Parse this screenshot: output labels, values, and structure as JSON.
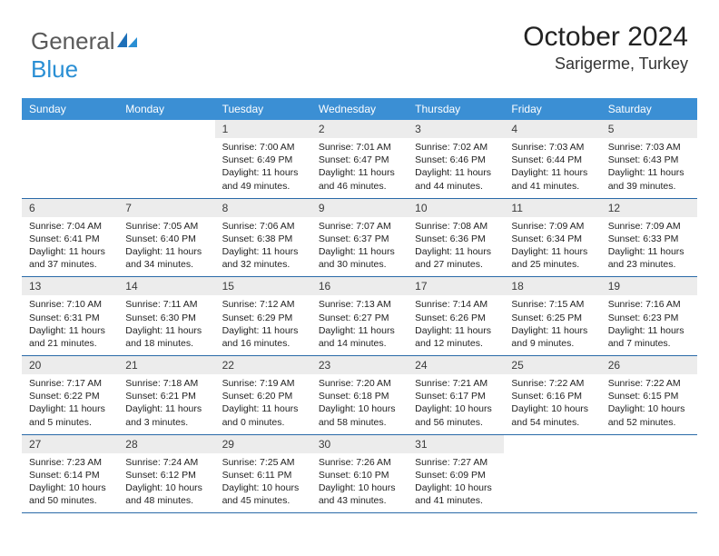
{
  "logo": {
    "part1": "General",
    "part2": "Blue"
  },
  "header": {
    "title": "October 2024",
    "location": "Sarigerme, Turkey"
  },
  "colors": {
    "header_bar": "#3b8fd4",
    "daynum_bg": "#ececec",
    "week_border": "#2a6aa8",
    "logo_gray": "#5a5a5a",
    "logo_blue": "#2a8fd4"
  },
  "dayNames": [
    "Sunday",
    "Monday",
    "Tuesday",
    "Wednesday",
    "Thursday",
    "Friday",
    "Saturday"
  ],
  "weeks": [
    [
      null,
      null,
      {
        "n": "1",
        "sr": "Sunrise: 7:00 AM",
        "ss": "Sunset: 6:49 PM",
        "dl": "Daylight: 11 hours and 49 minutes."
      },
      {
        "n": "2",
        "sr": "Sunrise: 7:01 AM",
        "ss": "Sunset: 6:47 PM",
        "dl": "Daylight: 11 hours and 46 minutes."
      },
      {
        "n": "3",
        "sr": "Sunrise: 7:02 AM",
        "ss": "Sunset: 6:46 PM",
        "dl": "Daylight: 11 hours and 44 minutes."
      },
      {
        "n": "4",
        "sr": "Sunrise: 7:03 AM",
        "ss": "Sunset: 6:44 PM",
        "dl": "Daylight: 11 hours and 41 minutes."
      },
      {
        "n": "5",
        "sr": "Sunrise: 7:03 AM",
        "ss": "Sunset: 6:43 PM",
        "dl": "Daylight: 11 hours and 39 minutes."
      }
    ],
    [
      {
        "n": "6",
        "sr": "Sunrise: 7:04 AM",
        "ss": "Sunset: 6:41 PM",
        "dl": "Daylight: 11 hours and 37 minutes."
      },
      {
        "n": "7",
        "sr": "Sunrise: 7:05 AM",
        "ss": "Sunset: 6:40 PM",
        "dl": "Daylight: 11 hours and 34 minutes."
      },
      {
        "n": "8",
        "sr": "Sunrise: 7:06 AM",
        "ss": "Sunset: 6:38 PM",
        "dl": "Daylight: 11 hours and 32 minutes."
      },
      {
        "n": "9",
        "sr": "Sunrise: 7:07 AM",
        "ss": "Sunset: 6:37 PM",
        "dl": "Daylight: 11 hours and 30 minutes."
      },
      {
        "n": "10",
        "sr": "Sunrise: 7:08 AM",
        "ss": "Sunset: 6:36 PM",
        "dl": "Daylight: 11 hours and 27 minutes."
      },
      {
        "n": "11",
        "sr": "Sunrise: 7:09 AM",
        "ss": "Sunset: 6:34 PM",
        "dl": "Daylight: 11 hours and 25 minutes."
      },
      {
        "n": "12",
        "sr": "Sunrise: 7:09 AM",
        "ss": "Sunset: 6:33 PM",
        "dl": "Daylight: 11 hours and 23 minutes."
      }
    ],
    [
      {
        "n": "13",
        "sr": "Sunrise: 7:10 AM",
        "ss": "Sunset: 6:31 PM",
        "dl": "Daylight: 11 hours and 21 minutes."
      },
      {
        "n": "14",
        "sr": "Sunrise: 7:11 AM",
        "ss": "Sunset: 6:30 PM",
        "dl": "Daylight: 11 hours and 18 minutes."
      },
      {
        "n": "15",
        "sr": "Sunrise: 7:12 AM",
        "ss": "Sunset: 6:29 PM",
        "dl": "Daylight: 11 hours and 16 minutes."
      },
      {
        "n": "16",
        "sr": "Sunrise: 7:13 AM",
        "ss": "Sunset: 6:27 PM",
        "dl": "Daylight: 11 hours and 14 minutes."
      },
      {
        "n": "17",
        "sr": "Sunrise: 7:14 AM",
        "ss": "Sunset: 6:26 PM",
        "dl": "Daylight: 11 hours and 12 minutes."
      },
      {
        "n": "18",
        "sr": "Sunrise: 7:15 AM",
        "ss": "Sunset: 6:25 PM",
        "dl": "Daylight: 11 hours and 9 minutes."
      },
      {
        "n": "19",
        "sr": "Sunrise: 7:16 AM",
        "ss": "Sunset: 6:23 PM",
        "dl": "Daylight: 11 hours and 7 minutes."
      }
    ],
    [
      {
        "n": "20",
        "sr": "Sunrise: 7:17 AM",
        "ss": "Sunset: 6:22 PM",
        "dl": "Daylight: 11 hours and 5 minutes."
      },
      {
        "n": "21",
        "sr": "Sunrise: 7:18 AM",
        "ss": "Sunset: 6:21 PM",
        "dl": "Daylight: 11 hours and 3 minutes."
      },
      {
        "n": "22",
        "sr": "Sunrise: 7:19 AM",
        "ss": "Sunset: 6:20 PM",
        "dl": "Daylight: 11 hours and 0 minutes."
      },
      {
        "n": "23",
        "sr": "Sunrise: 7:20 AM",
        "ss": "Sunset: 6:18 PM",
        "dl": "Daylight: 10 hours and 58 minutes."
      },
      {
        "n": "24",
        "sr": "Sunrise: 7:21 AM",
        "ss": "Sunset: 6:17 PM",
        "dl": "Daylight: 10 hours and 56 minutes."
      },
      {
        "n": "25",
        "sr": "Sunrise: 7:22 AM",
        "ss": "Sunset: 6:16 PM",
        "dl": "Daylight: 10 hours and 54 minutes."
      },
      {
        "n": "26",
        "sr": "Sunrise: 7:22 AM",
        "ss": "Sunset: 6:15 PM",
        "dl": "Daylight: 10 hours and 52 minutes."
      }
    ],
    [
      {
        "n": "27",
        "sr": "Sunrise: 7:23 AM",
        "ss": "Sunset: 6:14 PM",
        "dl": "Daylight: 10 hours and 50 minutes."
      },
      {
        "n": "28",
        "sr": "Sunrise: 7:24 AM",
        "ss": "Sunset: 6:12 PM",
        "dl": "Daylight: 10 hours and 48 minutes."
      },
      {
        "n": "29",
        "sr": "Sunrise: 7:25 AM",
        "ss": "Sunset: 6:11 PM",
        "dl": "Daylight: 10 hours and 45 minutes."
      },
      {
        "n": "30",
        "sr": "Sunrise: 7:26 AM",
        "ss": "Sunset: 6:10 PM",
        "dl": "Daylight: 10 hours and 43 minutes."
      },
      {
        "n": "31",
        "sr": "Sunrise: 7:27 AM",
        "ss": "Sunset: 6:09 PM",
        "dl": "Daylight: 10 hours and 41 minutes."
      },
      null,
      null
    ]
  ]
}
